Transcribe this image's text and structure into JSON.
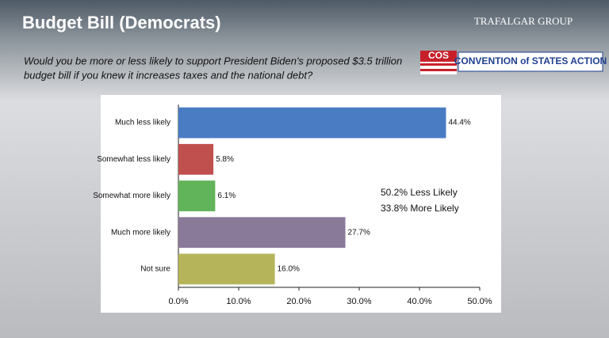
{
  "header": {
    "title": "Budget Bill (Democrats)",
    "subtitle_lines": [
      "Would you be more or less likely to support President Biden's proposed $3.5 trillion",
      "budget bill if you knew it increases taxes and the national debt?"
    ],
    "logo_left": "TRAFALGAR GROUP",
    "logo_cos": "COS",
    "logo_cos_text": "CONVENTION of STATES ACTION"
  },
  "chart_data": {
    "type": "bar",
    "orientation": "horizontal",
    "categories": [
      "Much less likely",
      "Somewhat less likely",
      "Somewhat more likely",
      "Much more likely",
      "Not sure"
    ],
    "values": [
      44.4,
      5.8,
      6.1,
      27.7,
      16.0
    ],
    "value_labels": [
      "44.4%",
      "5.8%",
      "6.1%",
      "27.7%",
      "16.0%"
    ],
    "colors": [
      "#4a7cc4",
      "#c0504d",
      "#62b45a",
      "#8a7a9a",
      "#b6b45a"
    ],
    "xlim": [
      0,
      50
    ],
    "xticks": [
      {
        "value": 0,
        "label": "0.0%"
      },
      {
        "value": 10,
        "label": "10.0%"
      },
      {
        "value": 20,
        "label": "20.0%"
      },
      {
        "value": 30,
        "label": "30.0%"
      },
      {
        "value": 40,
        "label": "40.0%"
      },
      {
        "value": 50,
        "label": "50.0%"
      }
    ],
    "annotations": [
      "50.2% Less Likely",
      "33.8% More Likely"
    ]
  }
}
